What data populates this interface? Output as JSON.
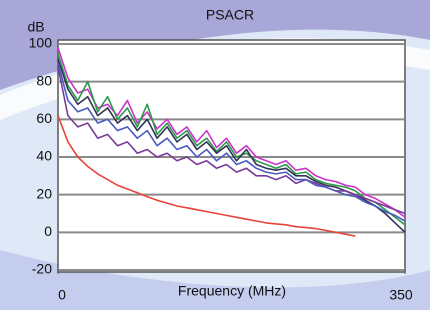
{
  "chart_data": {
    "type": "line",
    "title": "PSACR",
    "y_label": "dB",
    "x_label": "Frequency (MHz)",
    "x": [
      0,
      10,
      20,
      30,
      40,
      50,
      60,
      70,
      80,
      90,
      100,
      110,
      120,
      130,
      140,
      150,
      160,
      170,
      180,
      190,
      200,
      210,
      220,
      230,
      240,
      250,
      260,
      270,
      280,
      290,
      300,
      310,
      320,
      330,
      340,
      350
    ],
    "series": [
      {
        "color": "#cc33cc",
        "values": [
          98,
          82,
          74,
          76,
          66,
          68,
          62,
          70,
          58,
          64,
          55,
          60,
          52,
          56,
          48,
          54,
          45,
          50,
          42,
          46,
          40,
          38,
          36,
          38,
          33,
          34,
          30,
          28,
          27,
          25,
          24,
          20,
          18,
          15,
          12,
          8
        ]
      },
      {
        "color": "#2a9a4a",
        "values": [
          95,
          78,
          70,
          80,
          64,
          72,
          60,
          66,
          56,
          68,
          52,
          58,
          50,
          54,
          46,
          50,
          43,
          48,
          40,
          42,
          38,
          36,
          34,
          36,
          31,
          32,
          28,
          26,
          25,
          24,
          22,
          18,
          16,
          12,
          8,
          4
        ]
      },
      {
        "color": "#333355",
        "values": [
          92,
          76,
          68,
          72,
          62,
          66,
          58,
          62,
          54,
          60,
          50,
          56,
          48,
          52,
          44,
          48,
          42,
          46,
          38,
          44,
          36,
          34,
          33,
          34,
          30,
          30,
          27,
          25,
          24,
          22,
          20,
          17,
          14,
          10,
          5,
          0
        ]
      },
      {
        "color": "#7a3a9a",
        "values": [
          88,
          62,
          56,
          58,
          50,
          52,
          46,
          48,
          42,
          44,
          40,
          42,
          38,
          40,
          36,
          38,
          34,
          36,
          32,
          34,
          30,
          30,
          28,
          30,
          26,
          28,
          26,
          24,
          22,
          22,
          20,
          18,
          16,
          14,
          12,
          10
        ]
      },
      {
        "color": "#4a5abf",
        "values": [
          90,
          70,
          64,
          66,
          58,
          60,
          54,
          56,
          50,
          54,
          46,
          50,
          44,
          46,
          40,
          44,
          38,
          42,
          36,
          38,
          34,
          32,
          31,
          32,
          28,
          28,
          25,
          24,
          22,
          20,
          19,
          16,
          14,
          11,
          9,
          6
        ]
      },
      {
        "color": "#e8443a",
        "values": [
          62,
          48,
          40,
          35,
          31,
          28,
          25,
          23,
          21,
          19,
          17,
          15.5,
          14,
          13,
          12,
          11,
          10,
          9,
          8,
          7,
          6,
          5,
          4.5,
          4,
          3,
          2.5,
          2,
          1,
          0,
          -1,
          -2,
          null,
          null,
          null,
          null,
          null
        ]
      }
    ],
    "xlim": [
      0,
      350
    ],
    "xticks": [
      0,
      350
    ],
    "ylim": [
      -20,
      100
    ],
    "yticks": [
      -20,
      0,
      20,
      40,
      60,
      80,
      100
    ],
    "grid": true
  }
}
